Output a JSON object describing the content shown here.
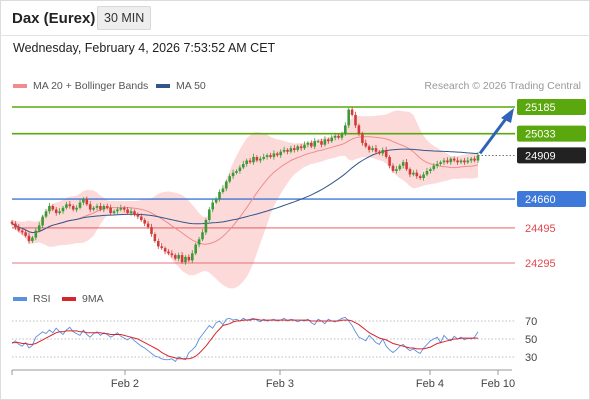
{
  "header": {
    "instrument": "Dax (Eurex)",
    "timeframe": "30 MIN",
    "datetime": "Wednesday, February 4, 2026 7:53:52 AM CET",
    "credit": "Research © 2026 Trading Central"
  },
  "legend": {
    "ma20_bb": "MA 20 + Bollinger Bands",
    "ma50": "MA 50",
    "rsi": "RSI",
    "rsi_ma": "9MA"
  },
  "colors": {
    "resistance": "#5aa80e",
    "support": "#3e78d8",
    "support_red": "#e0484f",
    "current": "#222222",
    "ma20": "#f28b8b",
    "bollinger_fill": "#fbd3d3",
    "ma50": "#33558c",
    "candle_up": "#3b9a35",
    "candle_down": "#d33a3a",
    "rsi": "#5b8fe0",
    "rsi_ma": "#d7262b",
    "arrow": "#2e63b8"
  },
  "chart_data": {
    "type": "candlestick",
    "x_labels": [
      "Feb 2",
      "Feb 3",
      "Feb 4",
      "Feb 10"
    ],
    "y_range": [
      24230,
      25240
    ],
    "levels": [
      {
        "label": "25185",
        "value": 25185,
        "kind": "resistance"
      },
      {
        "label": "25033",
        "value": 25033,
        "kind": "resistance"
      },
      {
        "label": "24909",
        "value": 24909,
        "kind": "current"
      },
      {
        "label": "24660",
        "value": 24660,
        "kind": "support"
      },
      {
        "label": "24495",
        "value": 24495,
        "kind": "support"
      },
      {
        "label": "24295",
        "value": 24295,
        "kind": "support"
      }
    ],
    "close_path": [
      24520,
      24500,
      24480,
      24470,
      24450,
      24420,
      24440,
      24480,
      24510,
      24560,
      24590,
      24620,
      24600,
      24580,
      24590,
      24610,
      24630,
      24620,
      24600,
      24610,
      24640,
      24660,
      24630,
      24600,
      24610,
      24620,
      24600,
      24620,
      24610,
      24580,
      24590,
      24600,
      24610,
      24600,
      24580,
      24590,
      24570,
      24560,
      24540,
      24520,
      24500,
      24460,
      24420,
      24390,
      24380,
      24360,
      24350,
      24340,
      24320,
      24340,
      24300,
      24330,
      24310,
      24350,
      24400,
      24430,
      24470,
      24540,
      24600,
      24640,
      24660,
      24700,
      24720,
      24760,
      24790,
      24810,
      24820,
      24840,
      24860,
      24880,
      24870,
      24900,
      24880,
      24890,
      24900,
      24910,
      24900,
      24920,
      24910,
      24930,
      24940,
      24930,
      24950,
      24940,
      24960,
      24950,
      24970,
      24980,
      24960,
      24990,
      24990,
      24970,
      25000,
      24990,
      25010,
      25020,
      25010,
      25030,
      25080,
      25170,
      25140,
      25080,
      25030,
      24980,
      24960,
      24940,
      24950,
      24930,
      24920,
      24940,
      24900,
      24850,
      24820,
      24830,
      24850,
      24870,
      24830,
      24800,
      24810,
      24790,
      24780,
      24800,
      24820,
      24830,
      24850,
      24860,
      24870,
      24880,
      24870,
      24890,
      24880,
      24870,
      24880,
      24870,
      24880,
      24890,
      24880,
      24909
    ],
    "rsi": {
      "levels": [
        70,
        50,
        30
      ],
      "range": [
        20,
        80
      ],
      "values": [
        45,
        48,
        44,
        42,
        46,
        40,
        43,
        52,
        55,
        58,
        56,
        60,
        57,
        62,
        58,
        55,
        60,
        63,
        58,
        56,
        54,
        60,
        55,
        52,
        56,
        58,
        54,
        57,
        55,
        52,
        54,
        57,
        53,
        51,
        49,
        52,
        48,
        45,
        42,
        40,
        37,
        34,
        31,
        30,
        28,
        27,
        27,
        28,
        25,
        30,
        28,
        27,
        35,
        38,
        42,
        50,
        55,
        60,
        65,
        62,
        68,
        70,
        66,
        72,
        73,
        71,
        72,
        70,
        73,
        71,
        72,
        73,
        71,
        69,
        72,
        70,
        71,
        72,
        70,
        71,
        73,
        70,
        72,
        71,
        69,
        71,
        70,
        72,
        68,
        66,
        72,
        70,
        67,
        72,
        70,
        69,
        71,
        73,
        74,
        70,
        65,
        58,
        52,
        50,
        48,
        54,
        50,
        46,
        44,
        50,
        42,
        38,
        35,
        38,
        42,
        44,
        40,
        37,
        39,
        36,
        34,
        40,
        44,
        48,
        50,
        52,
        46,
        54,
        50,
        48,
        53,
        50,
        52,
        49,
        51,
        50,
        52,
        58
      ],
      "ma": [
        46,
        46,
        46,
        45,
        45,
        44,
        44,
        45,
        47,
        49,
        51,
        53,
        55,
        57,
        58,
        58,
        59,
        59,
        59,
        59,
        58,
        58,
        57,
        57,
        57,
        57,
        57,
        56,
        56,
        55,
        55,
        55,
        55,
        54,
        53,
        52,
        51,
        50,
        48,
        46,
        44,
        42,
        40,
        38,
        35,
        33,
        31,
        30,
        29,
        28,
        28,
        28,
        28,
        29,
        31,
        34,
        38,
        42,
        47,
        52,
        57,
        61,
        65,
        66,
        67,
        69,
        70,
        70,
        71,
        71,
        71,
        72,
        72,
        71,
        71,
        71,
        71,
        71,
        71,
        71,
        71,
        71,
        71,
        71,
        71,
        71,
        71,
        71,
        70,
        70,
        70,
        70,
        70,
        70,
        70,
        70,
        70,
        71,
        71,
        71,
        70,
        68,
        66,
        63,
        60,
        57,
        55,
        53,
        51,
        50,
        49,
        47,
        45,
        44,
        43,
        42,
        41,
        40,
        40,
        39,
        39,
        39,
        40,
        41,
        43,
        45,
        46,
        47,
        48,
        49,
        50,
        50,
        51,
        51,
        51,
        51,
        51,
        51
      ]
    }
  }
}
